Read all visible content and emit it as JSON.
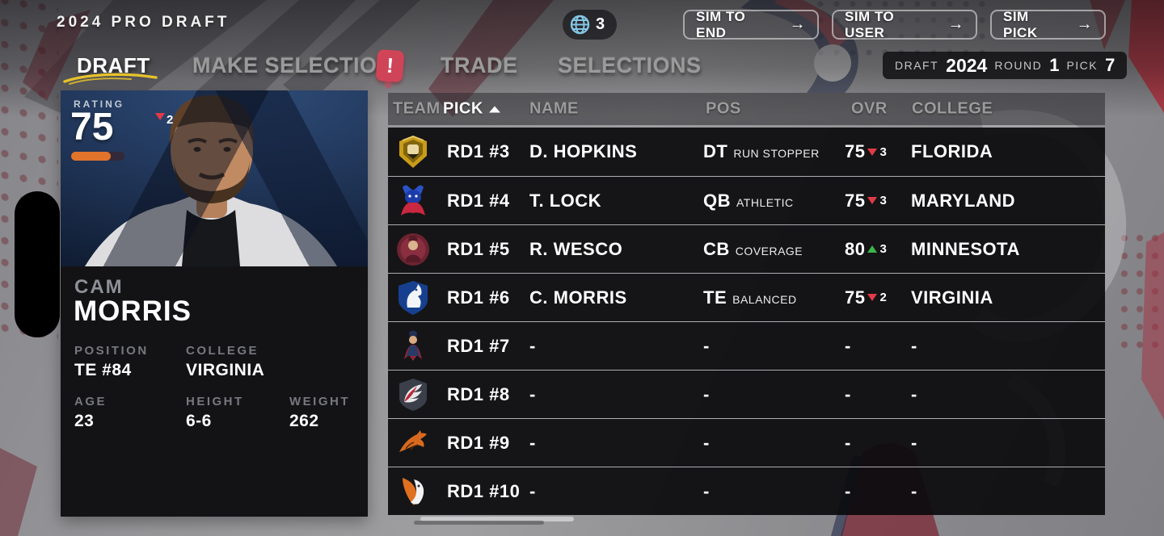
{
  "title_bar": {
    "title": "2024 PRO DRAFT",
    "globe_count": "3",
    "arrow_glyph": "→",
    "sim_buttons": [
      {
        "label": "SIM TO END"
      },
      {
        "label": "SIM TO USER"
      },
      {
        "label": "SIM PICK"
      }
    ]
  },
  "tabs": {
    "items": [
      {
        "label": "DRAFT",
        "active": true
      },
      {
        "label": "MAKE SELECTION",
        "active": false,
        "badge": "!"
      },
      {
        "label": "TRADE",
        "active": false
      },
      {
        "label": "SELECTIONS",
        "active": false
      }
    ]
  },
  "draft_status": {
    "draft_label": "DRAFT",
    "draft_value": "2024",
    "round_label": "ROUND",
    "round_value": "1",
    "pick_label": "PICK",
    "pick_value": "7"
  },
  "player_card": {
    "rating_label": "RATING",
    "rating_value": "75",
    "rating_trend": "down",
    "rating_trend_value": "2",
    "rating_bar_percent": 74,
    "first_name": "CAM",
    "last_name": "MORRIS",
    "position_label": "POSITION",
    "position_value": "TE #84",
    "college_label": "COLLEGE",
    "college_value": "VIRGINIA",
    "age_label": "AGE",
    "age_value": "23",
    "height_label": "HEIGHT",
    "height_value": "6-6",
    "weight_label": "WEIGHT",
    "weight_value": "262"
  },
  "draft_table": {
    "columns": [
      {
        "label": "TEAM",
        "sorted": false
      },
      {
        "label": "PICK",
        "sorted": true
      },
      {
        "label": "NAME",
        "sorted": false
      },
      {
        "label": "POS",
        "sorted": false
      },
      {
        "label": "OVR",
        "sorted": false
      },
      {
        "label": "COLLEGE",
        "sorted": false
      }
    ],
    "rows": [
      {
        "logo": "gold-tiger",
        "pick": "RD1 #3",
        "name": "D. HOPKINS",
        "pos": "DT",
        "archetype": "RUN STOPPER",
        "ovr": "75",
        "trend": "down",
        "trend_value": "3",
        "college": "FLORIDA"
      },
      {
        "logo": "blue-bull",
        "pick": "RD1 #4",
        "name": "T. LOCK",
        "pos": "QB",
        "archetype": "ATHLETIC",
        "ovr": "75",
        "trend": "down",
        "trend_value": "3",
        "college": "MARYLAND"
      },
      {
        "logo": "maroon-crest",
        "pick": "RD1 #5",
        "name": "R. WESCO",
        "pos": "CB",
        "archetype": "COVERAGE",
        "ovr": "80",
        "trend": "up",
        "trend_value": "3",
        "college": "MINNESOTA"
      },
      {
        "logo": "blue-knight-horse",
        "pick": "RD1 #6",
        "name": "C. MORRIS",
        "pos": "TE",
        "archetype": "BALANCED",
        "ovr": "75",
        "trend": "down",
        "trend_value": "2",
        "college": "VIRGINIA"
      },
      {
        "logo": "patriot",
        "pick": "RD1 #7",
        "name": "-",
        "pos": "-",
        "archetype": "",
        "ovr": "-",
        "trend": null,
        "trend_value": "",
        "college": "-"
      },
      {
        "logo": "eagle-wing",
        "pick": "RD1 #8",
        "name": "-",
        "pos": "-",
        "archetype": "",
        "ovr": "-",
        "trend": null,
        "trend_value": "",
        "college": "-"
      },
      {
        "logo": "orange-tiger",
        "pick": "RD1 #9",
        "name": "-",
        "pos": "-",
        "archetype": "",
        "ovr": "-",
        "trend": null,
        "trend_value": "",
        "college": "-"
      },
      {
        "logo": "orange-bronco",
        "pick": "RD1 #10",
        "name": "-",
        "pos": "-",
        "archetype": "",
        "ovr": "-",
        "trend": null,
        "trend_value": "",
        "college": "-"
      }
    ]
  },
  "colors": {
    "accent_orange": "#e1732b",
    "trend_down_red": "#e23a46",
    "trend_up_green": "#3cb54a",
    "badge_red": "#d04458",
    "underline_yellow": "#e6c22b",
    "globe_blue": "#84c7e6"
  }
}
